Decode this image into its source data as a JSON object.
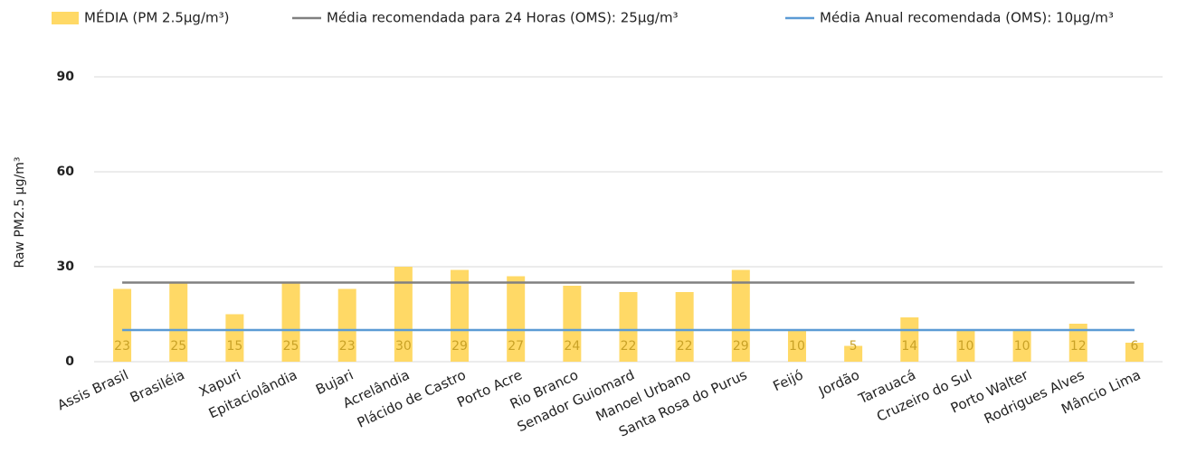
{
  "chart_data": {
    "type": "bar",
    "y_label": "Raw PM2.5 µg/m³",
    "categories": [
      "Assis Brasil",
      "Brasiléia",
      "Xapuri",
      "Epitaciolândia",
      "Bujari",
      "Acrelândia",
      "Plácido de Castro",
      "Porto Acre",
      "Rio Branco",
      "Senador Guiomard",
      "Manoel Urbano",
      "Santa Rosa do Purus",
      "Feijó",
      "Jordão",
      "Tarauacá",
      "Cruzeiro do Sul",
      "Porto Walter",
      "Rodrigues Alves",
      "Mâncio Lima"
    ],
    "series": [
      {
        "name": "MÉDIA (PM 2.5µg/m³)",
        "type": "bar",
        "color": "#ffd966",
        "values": [
          23,
          25,
          15,
          25,
          23,
          30,
          29,
          27,
          24,
          22,
          22,
          29,
          10,
          5,
          14,
          10,
          10,
          12,
          6
        ]
      },
      {
        "name": "Média recomendada para 24 Horas (OMS): 25µg/m³",
        "type": "line",
        "color": "#808080",
        "values": [
          25,
          25,
          25,
          25,
          25,
          25,
          25,
          25,
          25,
          25,
          25,
          25,
          25,
          25,
          25,
          25,
          25,
          25,
          25
        ]
      },
      {
        "name": "Média Anual recomendada (OMS): 10µg/m³",
        "type": "line",
        "color": "#5b9bd5",
        "values": [
          10,
          10,
          10,
          10,
          10,
          10,
          10,
          10,
          10,
          10,
          10,
          10,
          10,
          10,
          10,
          10,
          10,
          10,
          10
        ]
      }
    ],
    "data_label_color": "#c9a227",
    "ylim": [
      0,
      90
    ],
    "yticks": [
      0,
      30,
      60,
      90
    ],
    "grid": true,
    "legend": "top"
  }
}
